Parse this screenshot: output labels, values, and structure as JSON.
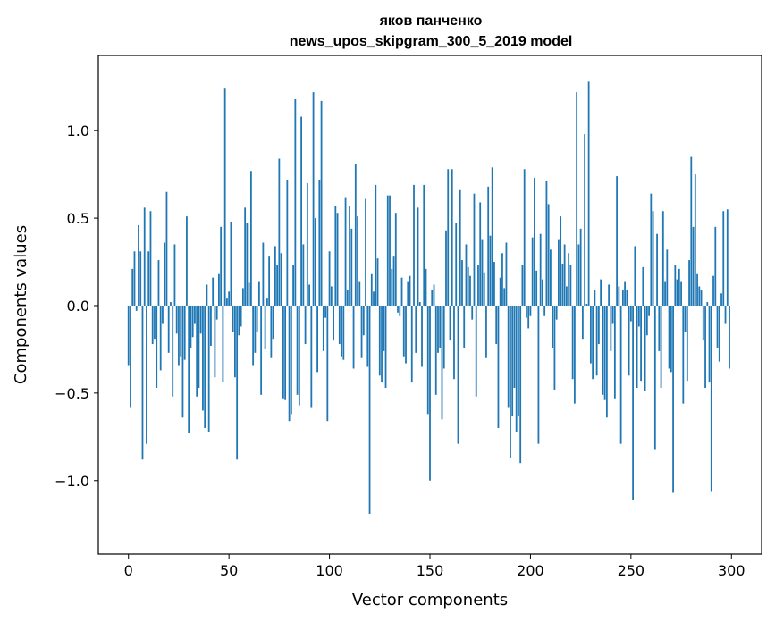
{
  "chart_data": {
    "type": "bar",
    "title": "яков панченко",
    "subtitle": "news_upos_skipgram_300_5_2019 model",
    "xlabel": "Vector components",
    "ylabel": "Components values",
    "xlim": [
      -15,
      315
    ],
    "ylim": [
      -1.42,
      1.43
    ],
    "xticks": [
      0,
      50,
      100,
      150,
      200,
      250,
      300
    ],
    "xtick_labels": [
      "0",
      "50",
      "100",
      "150",
      "200",
      "250",
      "300"
    ],
    "yticks": [
      -1.0,
      -0.5,
      0.0,
      0.5,
      1.0
    ],
    "ytick_labels": [
      "−1.0",
      "−0.5",
      "0.0",
      "0.5",
      "1.0"
    ],
    "grid": false,
    "bar_color": "#1f77b4",
    "values": [
      -0.34,
      -0.58,
      0.21,
      0.31,
      -0.03,
      0.46,
      0.31,
      -0.88,
      0.56,
      -0.79,
      0.31,
      0.54,
      -0.22,
      -0.19,
      -0.47,
      0.26,
      -0.37,
      -0.1,
      0.36,
      0.65,
      -0.27,
      0.02,
      -0.52,
      0.35,
      -0.16,
      -0.34,
      -0.29,
      -0.64,
      -0.31,
      0.51,
      -0.73,
      -0.24,
      -0.18,
      -0.1,
      -0.52,
      -0.47,
      -0.16,
      -0.6,
      -0.7,
      0.12,
      -0.72,
      -0.23,
      0.16,
      -0.41,
      -0.08,
      0.18,
      0.45,
      -0.44,
      1.24,
      0.04,
      0.08,
      0.48,
      -0.15,
      -0.41,
      -0.88,
      -0.17,
      -0.12,
      0.1,
      0.56,
      0.47,
      0.13,
      0.77,
      -0.34,
      -0.27,
      -0.15,
      0.14,
      -0.51,
      0.36,
      -0.25,
      0.04,
      0.28,
      -0.3,
      -0.19,
      0.34,
      0.23,
      0.84,
      0.3,
      -0.53,
      -0.54,
      0.72,
      -0.66,
      -0.62,
      0.23,
      1.18,
      -0.51,
      -0.57,
      1.08,
      0.35,
      -0.22,
      0.7,
      0.12,
      -0.58,
      1.22,
      0.5,
      -0.38,
      0.72,
      1.17,
      -0.26,
      -0.07,
      -0.66,
      0.31,
      0.11,
      -0.2,
      0.57,
      0.53,
      -0.22,
      -0.29,
      -0.31,
      0.62,
      0.09,
      0.57,
      0.44,
      -0.36,
      0.81,
      0.51,
      0.14,
      -0.3,
      -0.17,
      0.61,
      -0.35,
      -1.19,
      0.18,
      0.08,
      0.69,
      0.27,
      -0.4,
      -0.44,
      -0.26,
      -0.47,
      0.63,
      0.63,
      0.21,
      0.28,
      0.53,
      -0.04,
      -0.06,
      0.16,
      -0.29,
      -0.33,
      0.14,
      0.17,
      -0.44,
      0.69,
      -0.27,
      0.56,
      0.02,
      -0.35,
      0.69,
      0.21,
      -0.62,
      -1.0,
      0.09,
      0.12,
      -0.51,
      -0.27,
      -0.24,
      -0.65,
      -0.36,
      0.43,
      0.78,
      -0.2,
      0.78,
      -0.42,
      0.47,
      -0.79,
      0.66,
      0.26,
      -0.24,
      0.35,
      0.22,
      0.17,
      -0.08,
      0.64,
      -0.52,
      0.23,
      0.59,
      0.38,
      0.19,
      -0.3,
      0.68,
      0.4,
      0.79,
      0.25,
      -0.22,
      -0.7,
      0.16,
      0.3,
      0.1,
      0.36,
      -0.58,
      -0.87,
      -0.63,
      -0.47,
      -0.72,
      -0.63,
      -0.9,
      0.23,
      0.78,
      -0.07,
      -0.13,
      -0.06,
      0.39,
      0.73,
      0.2,
      -0.79,
      0.41,
      0.15,
      -0.06,
      0.71,
      0.58,
      0.32,
      -0.24,
      -0.48,
      -0.08,
      0.38,
      0.51,
      0.24,
      0.35,
      0.11,
      0.3,
      0.23,
      -0.42,
      -0.56,
      1.22,
      0.35,
      0.44,
      -0.19,
      0.98,
      0.01,
      1.28,
      -0.33,
      -0.42,
      0.09,
      -0.4,
      -0.22,
      0.15,
      -0.51,
      -0.54,
      -0.64,
      0.12,
      -0.26,
      -0.1,
      -0.53,
      0.74,
      0.11,
      -0.79,
      0.09,
      0.14,
      0.09,
      -0.4,
      -0.09,
      -1.11,
      0.34,
      -0.47,
      -0.12,
      -0.43,
      0.22,
      -0.49,
      -0.17,
      -0.06,
      0.64,
      0.54,
      -0.82,
      0.41,
      -0.26,
      -0.47,
      0.54,
      0.14,
      0.32,
      -0.36,
      -0.38,
      -1.07,
      0.23,
      0.15,
      0.21,
      0.14,
      -0.56,
      -0.15,
      -0.43,
      0.26,
      0.85,
      0.45,
      0.75,
      0.18,
      0.11,
      0.09,
      -0.2,
      -0.47,
      0.02,
      -0.44,
      -1.06,
      0.17,
      0.45,
      -0.24,
      -0.32,
      0.07,
      0.54,
      -0.1,
      0.55,
      -0.36
    ]
  }
}
